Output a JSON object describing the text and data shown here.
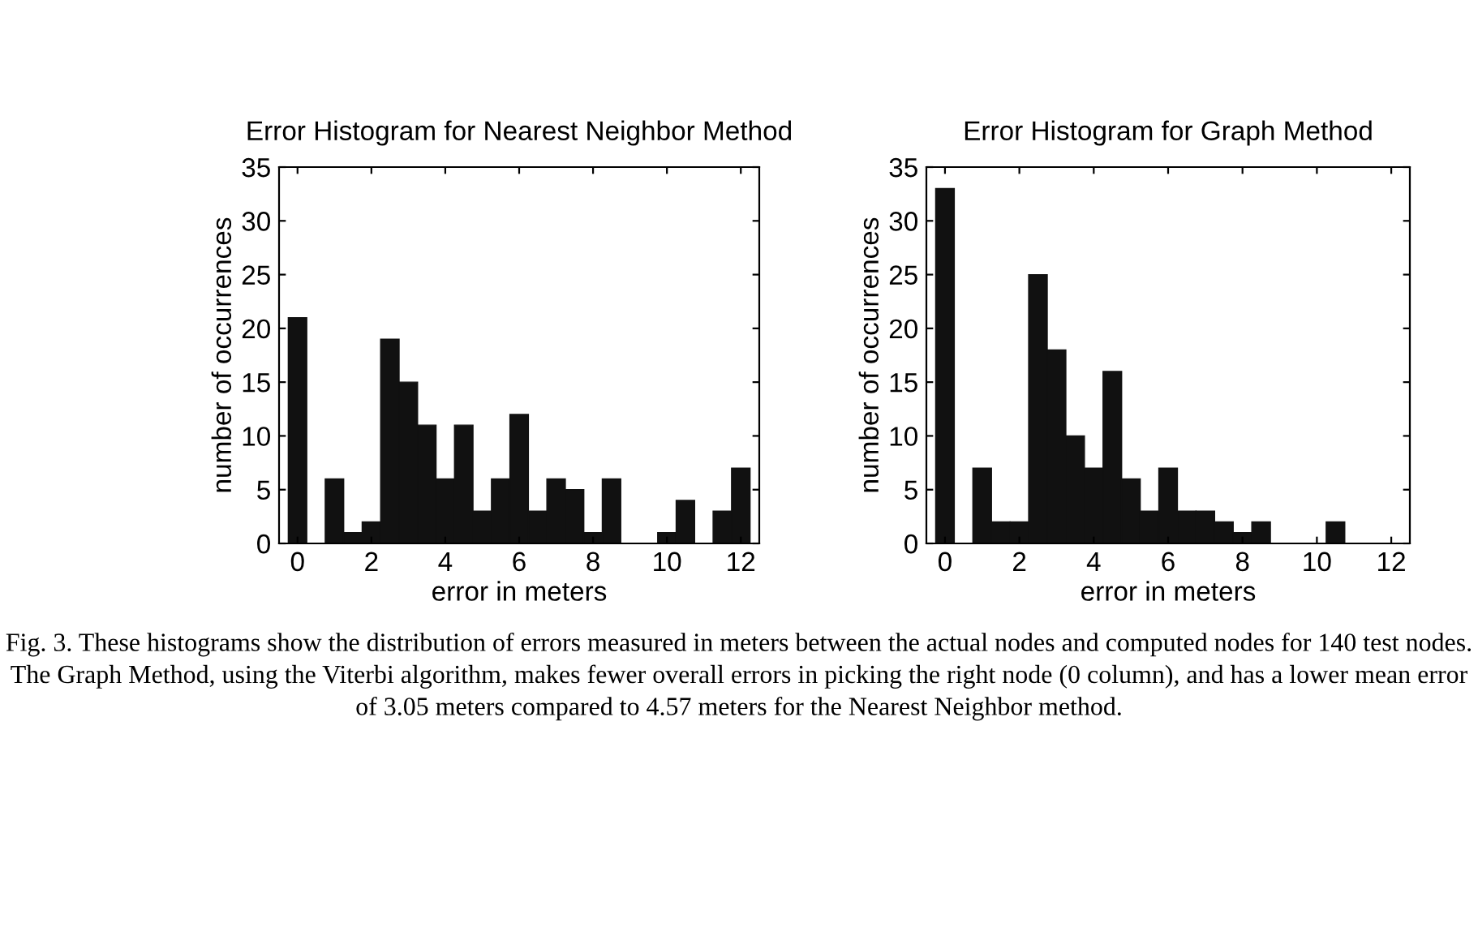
{
  "chart_data": [
    {
      "type": "histogram",
      "title": "Error Histogram for Nearest Neighbor Method",
      "xlabel": "error in meters",
      "ylabel": "number of occurrences",
      "bins": [
        -0.25,
        0.25,
        0.75,
        1.25,
        1.75,
        2.25,
        2.75,
        3.25,
        3.75,
        4.25,
        4.75,
        5.25,
        5.75,
        6.25,
        6.75,
        7.25,
        7.75,
        8.25,
        8.75,
        9.25,
        9.75,
        10.25,
        10.75,
        11.25,
        11.75,
        12.25
      ],
      "values": [
        21,
        0,
        6,
        1,
        2,
        19,
        15,
        11,
        6,
        11,
        3,
        6,
        12,
        3,
        6,
        5,
        1,
        6,
        0,
        0,
        1,
        4,
        0,
        3,
        7
      ],
      "color": "#111111",
      "xlim": [
        -0.5,
        12.5
      ],
      "xticks": [
        0,
        2,
        4,
        6,
        8,
        10,
        12
      ],
      "ylim": [
        0,
        35
      ],
      "yticks": [
        0,
        5,
        10,
        15,
        20,
        25,
        30,
        35
      ],
      "grid": false
    },
    {
      "type": "histogram",
      "title": "Error Histogram for Graph Method",
      "xlabel": "error in meters",
      "ylabel": "number of occurrences",
      "bins": [
        -0.25,
        0.25,
        0.75,
        1.25,
        1.75,
        2.25,
        2.75,
        3.25,
        3.75,
        4.25,
        4.75,
        5.25,
        5.75,
        6.25,
        6.75,
        7.25,
        7.75,
        8.25,
        8.75,
        9.25,
        9.75,
        10.25,
        10.75,
        11.25,
        11.75,
        12.25
      ],
      "values": [
        33,
        0,
        7,
        2,
        2,
        25,
        18,
        10,
        7,
        16,
        6,
        3,
        7,
        3,
        3,
        2,
        1,
        2,
        0,
        0,
        0,
        2,
        0,
        0,
        0
      ],
      "color": "#111111",
      "xlim": [
        -0.5,
        12.5
      ],
      "xticks": [
        0,
        2,
        4,
        6,
        8,
        10,
        12
      ],
      "ylim": [
        0,
        35
      ],
      "yticks": [
        0,
        5,
        10,
        15,
        20,
        25,
        30,
        35
      ],
      "grid": false,
      "annotations": [
        "Fig. 3. These histograms show the distribution of errors measured in meters between the actual nodes and computed nodes for 140 test nodes. The Graph Method, using the Viterbi algorithm, makes fewer overall errors in picking the right node (0 column), and has a lower mean error of 3.05 meters compared to 4.57 meters for the Nearest Neighbor method."
      ]
    }
  ]
}
